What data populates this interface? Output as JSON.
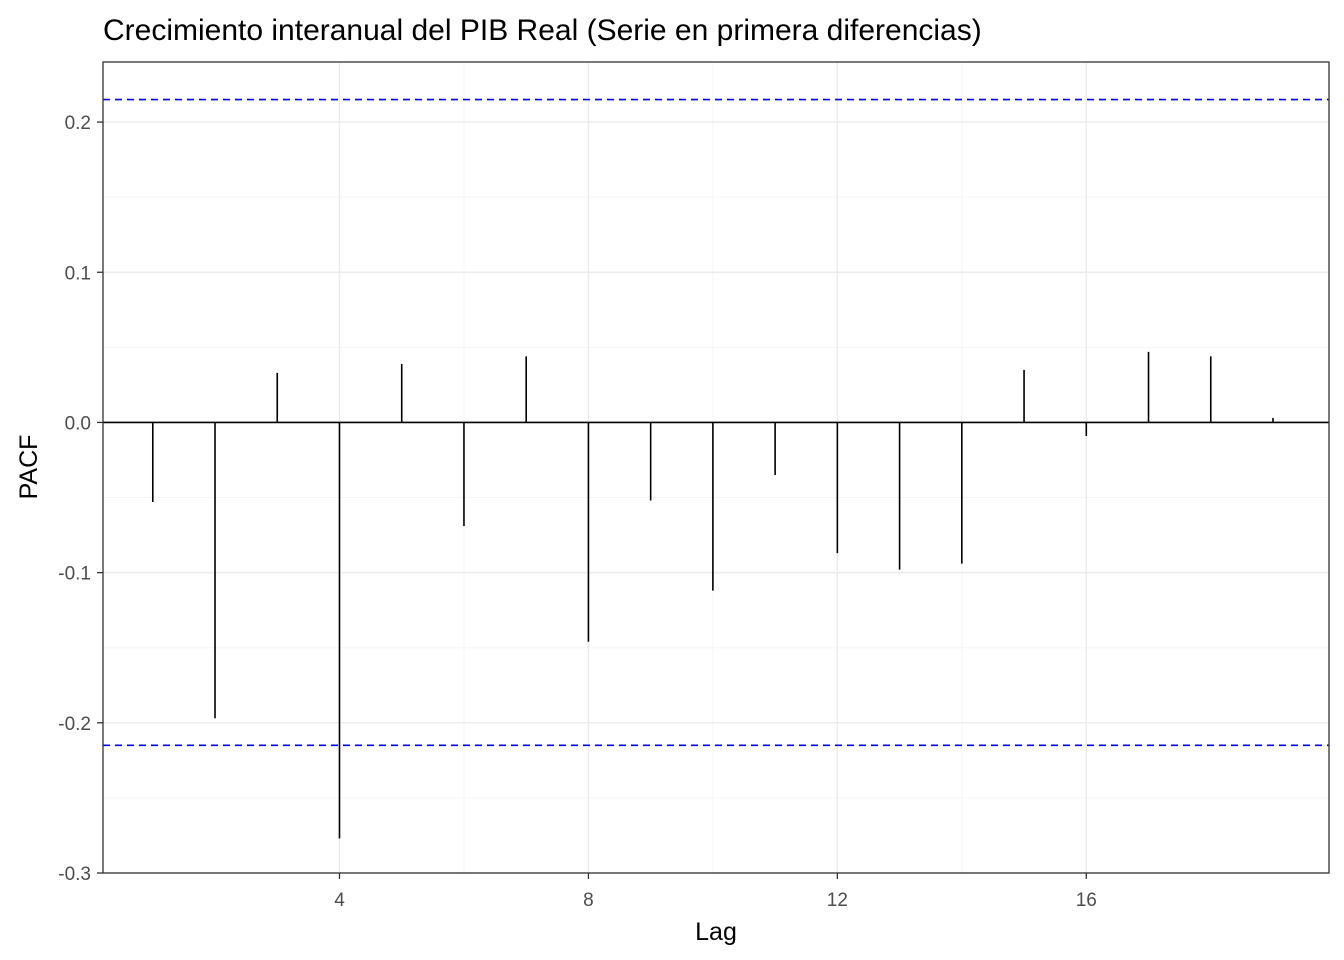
{
  "chart_data": {
    "type": "bar",
    "title": "Crecimiento interanual del PIB Real (Serie en primera diferencias)",
    "xlabel": "Lag",
    "ylabel": "PACF",
    "xlim": [
      0.2,
      19.9
    ],
    "ylim": [
      -0.3,
      0.24
    ],
    "x_ticks": [
      {
        "value": 4,
        "label": "4"
      },
      {
        "value": 8,
        "label": "8"
      },
      {
        "value": 12,
        "label": "12"
      },
      {
        "value": 16,
        "label": "16"
      }
    ],
    "y_ticks": [
      {
        "value": 0.2,
        "label": "0.2"
      },
      {
        "value": 0.1,
        "label": "0.1"
      },
      {
        "value": 0.0,
        "label": "0.0"
      },
      {
        "value": -0.1,
        "label": "-0.1"
      },
      {
        "value": -0.2,
        "label": "-0.2"
      },
      {
        "value": -0.3,
        "label": "-0.3"
      }
    ],
    "lags": [
      1,
      2,
      3,
      4,
      5,
      6,
      7,
      8,
      9,
      10,
      11,
      12,
      13,
      14,
      15,
      16,
      17,
      18,
      19
    ],
    "values": [
      -0.053,
      -0.197,
      0.033,
      -0.277,
      0.039,
      -0.069,
      0.044,
      -0.146,
      -0.052,
      -0.112,
      -0.035,
      -0.087,
      -0.098,
      -0.094,
      0.035,
      -0.009,
      0.047,
      0.044,
      0.003
    ],
    "confidence_bound": 0.215,
    "grid": true,
    "colors": {
      "bars": "#000000",
      "bounds": "#0000ff",
      "grid_major": "#ebebeb",
      "grid_minor": "#f5f5f5",
      "panel_border": "#333333"
    }
  }
}
